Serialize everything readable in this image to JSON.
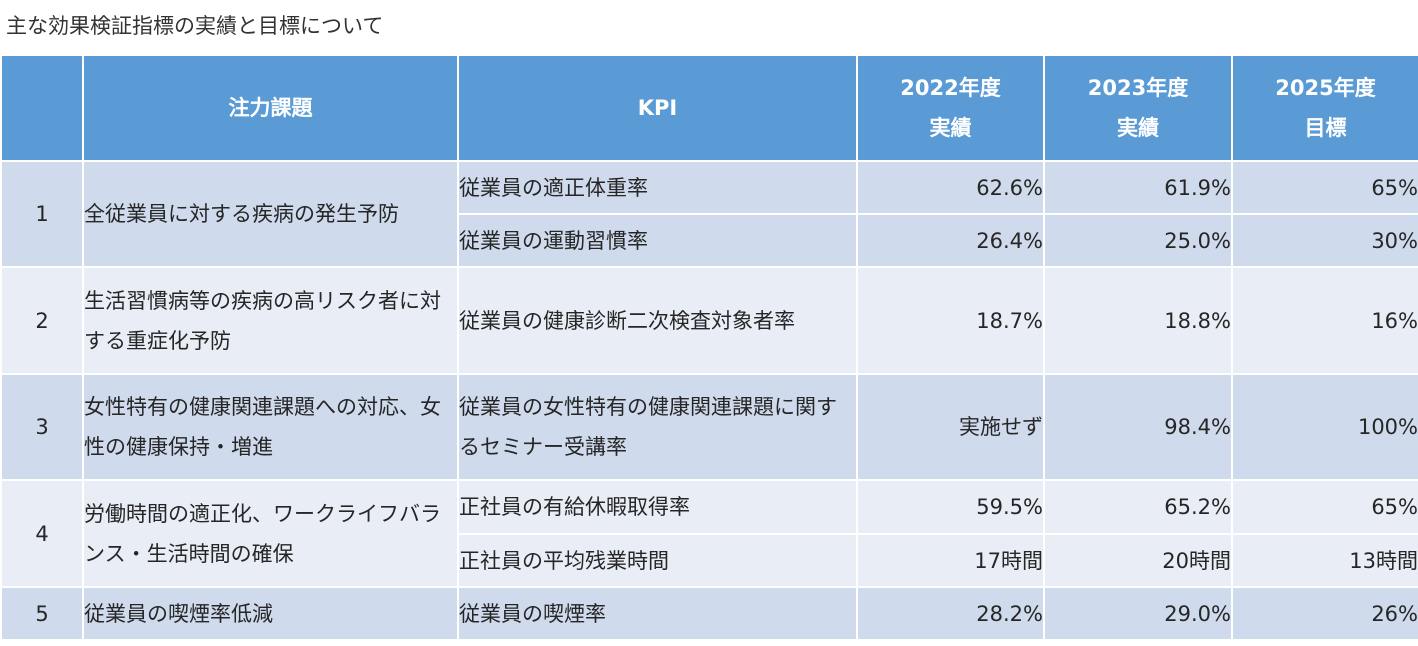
{
  "title": "主な効果検証指標の実績と目標について",
  "table": {
    "headers": {
      "no": "",
      "issue": "注力課題",
      "kpi": "KPI",
      "y2022_line1": "2022年度",
      "y2022_line2": "実績",
      "y2023_line1": "2023年度",
      "y2023_line2": "実績",
      "y2025_line1": "2025年度",
      "y2025_line2": "目標"
    },
    "rows": [
      {
        "no": "1",
        "issue": "全従業員に対する疾病の発生予防",
        "kpi": "従業員の適正体重率",
        "y2022": "62.6%",
        "y2023": "61.9%",
        "y2025": "65%"
      },
      {
        "no": "",
        "issue": "",
        "kpi": "従業員の運動習慣率",
        "y2022": "26.4%",
        "y2023": "25.0%",
        "y2025": "30%"
      },
      {
        "no": "2",
        "issue": "生活習慣病等の疾病の高リスク者に対する重症化予防",
        "kpi": "従業員の健康診断二次検査対象者率",
        "y2022": "18.7%",
        "y2023": "18.8%",
        "y2025": "16%"
      },
      {
        "no": "3",
        "issue": "女性特有の健康関連課題への対応、女性の健康保持・増進",
        "kpi": "従業員の女性特有の健康関連課題に関するセミナー受講率",
        "y2022": "実施せず",
        "y2023": "98.4%",
        "y2025": "100%"
      },
      {
        "no": "4",
        "issue": "労働時間の適正化、ワークライフバランス・生活時間の確保",
        "kpi": "正社員の有給休暇取得率",
        "y2022": "59.5%",
        "y2023": "65.2%",
        "y2025": "65%"
      },
      {
        "no": "",
        "issue": "",
        "kpi": "正社員の平均残業時間",
        "y2022": "17時間",
        "y2023": "20時間",
        "y2025": "13時間"
      },
      {
        "no": "5",
        "issue": "従業員の喫煙率低減",
        "kpi": "従業員の喫煙率",
        "y2022": "28.2%",
        "y2023": "29.0%",
        "y2025": "26%"
      }
    ]
  },
  "colors": {
    "header_bg": "#5b9bd5",
    "band_dark": "#cfdaec",
    "band_light": "#e8edf6"
  }
}
